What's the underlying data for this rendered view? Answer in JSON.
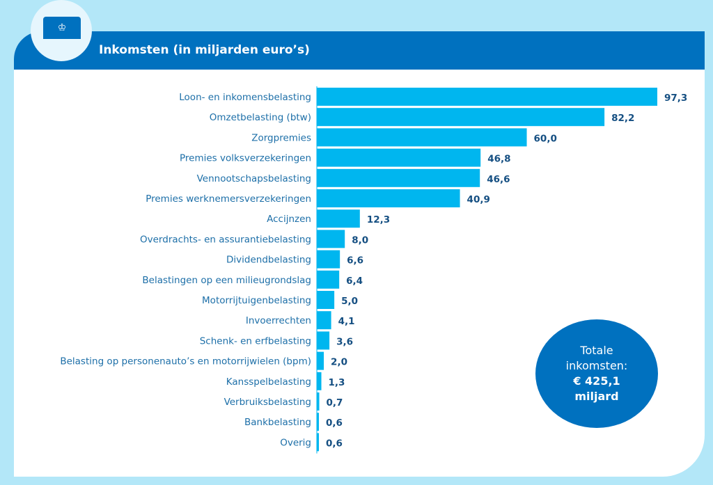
{
  "header": {
    "title": "Inkomsten (in miljarden euro’s)",
    "logo_icon": "coat-of-arms-icon"
  },
  "total": {
    "line1": "Totale",
    "line2": "inkomsten:",
    "line3": "€ 425,1",
    "line4": "miljard"
  },
  "colors": {
    "background": "#b3e7f8",
    "header": "#0071bf",
    "bar": "#00b6ef",
    "label": "#1d6fa8",
    "value": "#154f82"
  },
  "chart_data": {
    "type": "bar",
    "orientation": "horizontal",
    "title": "Inkomsten (in miljarden euro’s)",
    "xlabel": "",
    "ylabel": "",
    "xlim": [
      0,
      97.3
    ],
    "grid": false,
    "categories": [
      "Loon- en inkomensbelasting",
      "Omzetbelasting (btw)",
      "Zorgpremies",
      "Premies volksverzekeringen",
      "Vennootschapsbelasting",
      "Premies werknemersverzekeringen",
      "Accijnzen",
      "Overdrachts- en assurantiebelasting",
      "Dividendbelasting",
      "Belastingen op een milieugrondslag",
      "Motorrijtuigenbelasting",
      "Invoerrechten",
      "Schenk- en erfbelasting",
      "Belasting op personenauto’s en motorrijwielen (bpm)",
      "Kansspelbelasting",
      "Verbruiksbelasting",
      "Bankbelasting",
      "Overig"
    ],
    "values": [
      97.3,
      82.2,
      60.0,
      46.8,
      46.6,
      40.9,
      12.3,
      8.0,
      6.6,
      6.4,
      5.0,
      4.1,
      3.6,
      2.0,
      1.3,
      0.7,
      0.6,
      0.6
    ],
    "value_labels": [
      "97,3",
      "82,2",
      "60,0",
      "46,8",
      "46,6",
      "40,9",
      "12,3",
      "8,0",
      "6,6",
      "6,4",
      "5,0",
      "4,1",
      "3,6",
      "2,0",
      "1,3",
      "0,7",
      "0,6",
      "0,6"
    ],
    "annotation": "Totale inkomsten: € 425,1 miljard"
  }
}
